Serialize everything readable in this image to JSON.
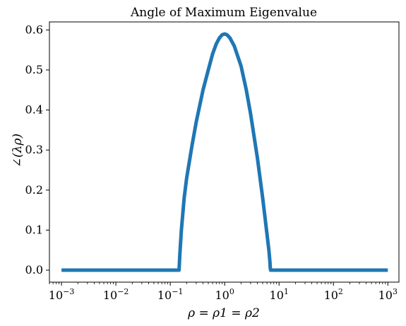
{
  "chart_data": {
    "type": "line",
    "title": "Angle of Maximum Eigenvalue",
    "xlabel": "ρ = ρ1 = ρ2",
    "ylabel": "∠(λρ)",
    "xscale": "log",
    "xlim": [
      0.0006,
      1600
    ],
    "ylim": [
      -0.03,
      0.62
    ],
    "x_tick_values": [
      0.001,
      0.01,
      0.1,
      1,
      10,
      100,
      1000
    ],
    "x_tick_labels": [
      {
        "base": "10",
        "exp": "−3"
      },
      {
        "base": "10",
        "exp": "−2"
      },
      {
        "base": "10",
        "exp": "−1"
      },
      {
        "base": "10",
        "exp": "0"
      },
      {
        "base": "10",
        "exp": "1"
      },
      {
        "base": "10",
        "exp": "2"
      },
      {
        "base": "10",
        "exp": "3"
      }
    ],
    "y_tick_values": [
      0.0,
      0.1,
      0.2,
      0.3,
      0.4,
      0.5,
      0.6
    ],
    "y_tick_labels": [
      "0.0",
      "0.1",
      "0.2",
      "0.3",
      "0.4",
      "0.5",
      "0.6"
    ],
    "grid": false,
    "series": [
      {
        "color": "#1f77b4",
        "x": [
          0.001,
          0.01,
          0.1,
          0.14,
          0.145,
          0.15,
          0.16,
          0.18,
          0.2,
          0.25,
          0.3,
          0.4,
          0.5,
          0.6,
          0.7,
          0.8,
          0.9,
          1.0,
          1.1,
          1.25,
          1.5,
          2.0,
          2.5,
          3.0,
          4.0,
          5.0,
          6.0,
          6.5,
          6.8,
          6.9,
          7.0,
          10,
          100,
          1000
        ],
        "y": [
          0.0,
          0.0,
          0.0,
          0.0,
          0.0,
          0.04,
          0.1,
          0.18,
          0.23,
          0.31,
          0.37,
          0.45,
          0.5,
          0.54,
          0.565,
          0.58,
          0.588,
          0.59,
          0.588,
          0.58,
          0.56,
          0.51,
          0.45,
          0.39,
          0.28,
          0.18,
          0.09,
          0.05,
          0.02,
          0.005,
          0.0,
          0.0,
          0.0,
          0.0
        ]
      }
    ]
  }
}
